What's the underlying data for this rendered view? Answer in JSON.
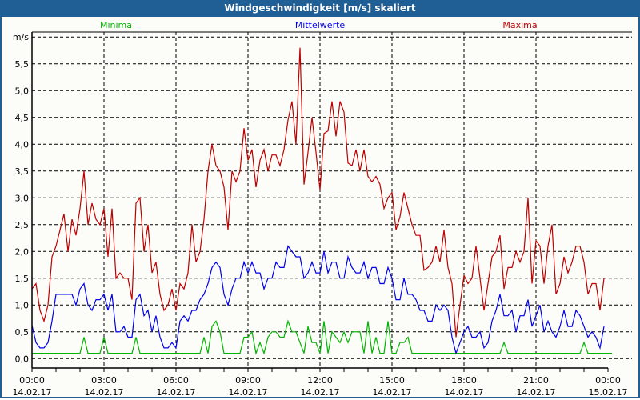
{
  "window": {
    "title": "Windgeschwindigkeit [m/s] skaliert"
  },
  "chart_data": {
    "type": "line",
    "title": "Windgeschwindigkeit [m/s] skaliert",
    "ylabel": "m/s",
    "xlabel": "",
    "ylim": [
      0,
      6.0
    ],
    "yticks": [
      0,
      0.5,
      1.0,
      1.5,
      2.0,
      2.5,
      3.0,
      3.5,
      4.0,
      4.5,
      5.0,
      5.5
    ],
    "ytick_labels": [
      "0,0",
      "0,5",
      "1,0",
      "1,5",
      "2,0",
      "2,5",
      "3,0",
      "3,5",
      "4,0",
      "4,5",
      "5,0",
      "5,5"
    ],
    "xlim_hours": [
      0,
      24
    ],
    "x_start": "14.02.17 00:00",
    "x_step_minutes": 10,
    "xticks": [
      {
        "hour": 0,
        "time": "00:00",
        "date": "14.02.17"
      },
      {
        "hour": 3,
        "time": "03:00",
        "date": "14.02.17"
      },
      {
        "hour": 6,
        "time": "06:00",
        "date": "14.02.17"
      },
      {
        "hour": 9,
        "time": "09:00",
        "date": "14.02.17"
      },
      {
        "hour": 12,
        "time": "12:00",
        "date": "14.02.17"
      },
      {
        "hour": 15,
        "time": "15:00",
        "date": "14.02.17"
      },
      {
        "hour": 18,
        "time": "18:00",
        "date": "14.02.17"
      },
      {
        "hour": 21,
        "time": "21:00",
        "date": "14.02.17"
      },
      {
        "hour": 24,
        "time": "00:00",
        "date": "15.02.17"
      }
    ],
    "grid": true,
    "legend_placement": "top",
    "series": [
      {
        "name": "Minima",
        "color": "#00b400",
        "values": [
          0.1,
          0.1,
          0.1,
          0.1,
          0.1,
          0.1,
          0.1,
          0.1,
          0.1,
          0.1,
          0.1,
          0.1,
          0.1,
          0.4,
          0.1,
          0.1,
          0.1,
          0.1,
          0.4,
          0.1,
          0.1,
          0.1,
          0.1,
          0.1,
          0.1,
          0.1,
          0.4,
          0.1,
          0.1,
          0.1,
          0.1,
          0.1,
          0.1,
          0.1,
          0.1,
          0.1,
          0.1,
          0.1,
          0.1,
          0.1,
          0.1,
          0.1,
          0.1,
          0.4,
          0.1,
          0.6,
          0.7,
          0.5,
          0.1,
          0.1,
          0.1,
          0.1,
          0.1,
          0.4,
          0.4,
          0.5,
          0.1,
          0.3,
          0.1,
          0.4,
          0.5,
          0.5,
          0.4,
          0.4,
          0.7,
          0.5,
          0.5,
          0.3,
          0.1,
          0.6,
          0.3,
          0.3,
          0.1,
          0.7,
          0.1,
          0.5,
          0.4,
          0.3,
          0.5,
          0.3,
          0.5,
          0.5,
          0.5,
          0.1,
          0.7,
          0.1,
          0.4,
          0.1,
          0.1,
          0.7,
          0.1,
          0.1,
          0.3,
          0.3,
          0.4,
          0.1,
          0.1,
          0.1,
          0.1,
          0.1,
          0.1,
          0.1,
          0.1,
          0.1,
          0.1,
          0.1,
          0.1,
          0.1,
          0.1,
          0.1,
          0.1,
          0.1,
          0.1,
          0.1,
          0.1,
          0.1,
          0.1,
          0.1,
          0.3,
          0.1,
          0.1,
          0.1,
          0.1,
          0.1,
          0.1,
          0.1,
          0.1,
          0.1,
          0.1,
          0.1,
          0.1,
          0.1,
          0.1,
          0.1,
          0.1,
          0.1,
          0.1,
          0.1,
          0.3,
          0.1,
          0.1,
          0.1,
          0.1,
          0.1,
          0.1,
          0.1
        ]
      },
      {
        "name": "Mittelwerte",
        "color": "#0000f0",
        "values": [
          0.62,
          0.3,
          0.2,
          0.2,
          0.3,
          0.7,
          1.2,
          1.2,
          1.2,
          1.2,
          1.2,
          1.0,
          1.3,
          1.4,
          1.0,
          0.9,
          1.1,
          1.1,
          1.2,
          0.9,
          1.2,
          0.5,
          0.5,
          0.6,
          0.4,
          0.4,
          1.1,
          1.2,
          0.8,
          0.9,
          0.5,
          0.8,
          0.4,
          0.2,
          0.2,
          0.3,
          0.2,
          0.7,
          0.8,
          0.7,
          0.9,
          0.9,
          1.1,
          1.2,
          1.4,
          1.7,
          1.8,
          1.7,
          1.2,
          1.0,
          1.3,
          1.5,
          1.5,
          1.8,
          1.6,
          1.8,
          1.6,
          1.6,
          1.3,
          1.5,
          1.5,
          1.8,
          1.7,
          1.7,
          2.1,
          2.0,
          1.9,
          1.9,
          1.5,
          1.6,
          1.8,
          1.6,
          1.6,
          2.0,
          1.6,
          1.8,
          1.8,
          1.5,
          1.5,
          1.9,
          1.7,
          1.6,
          1.6,
          1.8,
          1.5,
          1.7,
          1.7,
          1.4,
          1.4,
          1.7,
          1.5,
          1.1,
          1.1,
          1.5,
          1.2,
          1.2,
          1.1,
          0.9,
          0.9,
          0.7,
          0.7,
          1.0,
          0.9,
          1.0,
          0.9,
          0.4,
          0.1,
          0.3,
          0.5,
          0.6,
          0.4,
          0.4,
          0.5,
          0.2,
          0.3,
          0.7,
          0.9,
          1.2,
          0.8,
          0.8,
          0.9,
          0.5,
          0.8,
          0.8,
          1.1,
          0.6,
          0.8,
          1.0,
          0.5,
          0.7,
          0.5,
          0.4,
          0.6,
          0.9,
          0.6,
          0.6,
          0.9,
          0.8,
          0.6,
          0.4,
          0.5,
          0.4,
          0.2,
          0.6
        ]
      },
      {
        "name": "Maxima",
        "color": "#c00000",
        "values": [
          1.3,
          1.4,
          0.9,
          0.7,
          1.0,
          1.9,
          2.1,
          2.4,
          2.7,
          2.0,
          2.6,
          2.3,
          2.8,
          3.5,
          2.5,
          2.9,
          2.6,
          2.5,
          2.8,
          1.9,
          2.8,
          1.5,
          1.6,
          1.5,
          1.5,
          1.1,
          2.9,
          3.0,
          2.0,
          2.5,
          1.6,
          1.8,
          1.2,
          0.9,
          1.0,
          1.3,
          0.9,
          1.4,
          1.3,
          1.6,
          2.5,
          1.8,
          2.0,
          2.6,
          3.5,
          4.0,
          3.6,
          3.5,
          3.2,
          2.4,
          3.5,
          3.3,
          3.5,
          4.3,
          3.7,
          3.9,
          3.2,
          3.7,
          3.9,
          3.5,
          3.8,
          3.8,
          3.6,
          3.9,
          4.45,
          4.8,
          4.0,
          5.8,
          3.25,
          3.85,
          4.5,
          3.85,
          3.15,
          4.2,
          4.25,
          4.8,
          4.15,
          4.8,
          4.6,
          3.65,
          3.6,
          3.9,
          3.5,
          3.9,
          3.4,
          3.3,
          3.4,
          3.25,
          2.8,
          3.0,
          3.1,
          2.4,
          2.65,
          3.1,
          2.8,
          2.5,
          2.3,
          2.3,
          1.65,
          1.7,
          1.8,
          2.1,
          1.8,
          2.4,
          1.7,
          1.4,
          0.4,
          1.0,
          1.55,
          1.4,
          1.5,
          2.1,
          1.5,
          0.9,
          1.4,
          1.9,
          2.0,
          2.3,
          1.3,
          1.7,
          1.7,
          2.0,
          1.8,
          2.0,
          3.0,
          1.4,
          2.2,
          2.1,
          1.4,
          2.1,
          2.5,
          1.2,
          1.4,
          1.9,
          1.6,
          1.8,
          2.1,
          2.1,
          1.8,
          1.2,
          1.4,
          1.4,
          0.9,
          1.5
        ]
      }
    ]
  }
}
